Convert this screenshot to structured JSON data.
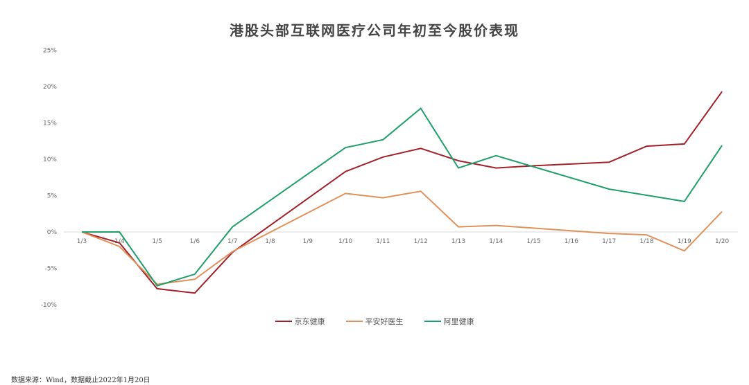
{
  "title": "港股头部互联网医疗公司年初至今股价表现",
  "source_note": "数据来源：Wind，数据截止2022年1月20日",
  "chart_data": {
    "type": "line",
    "title": "港股头部互联网医疗公司年初至今股价表现",
    "xlabel": "",
    "ylabel": "",
    "categories": [
      "1/3",
      "1/4",
      "1/5",
      "1/6",
      "1/7",
      "1/8",
      "1/9",
      "1/10",
      "1/11",
      "1/12",
      "1/13",
      "1/14",
      "1/15",
      "1/16",
      "1/17",
      "1/18",
      "1/19",
      "1/20"
    ],
    "y_ticks": [
      "25%",
      "20%",
      "15%",
      "10%",
      "5%",
      "0%",
      "-5%",
      "-10%"
    ],
    "ylim": [
      -10,
      25
    ],
    "grid": false,
    "legend_position": "bottom",
    "series": [
      {
        "name": "京东健康",
        "color": "#A3202A",
        "values": [
          0,
          -1.5,
          -7.8,
          -8.4,
          -2.8,
          null,
          null,
          8.3,
          10.3,
          11.5,
          9.8,
          8.8,
          9.1,
          null,
          9.6,
          11.8,
          12.1,
          19.3
        ]
      },
      {
        "name": "平安好医生",
        "color": "#E0915A",
        "values": [
          0,
          -2.0,
          -7.2,
          -6.5,
          -2.7,
          null,
          null,
          5.3,
          4.7,
          5.6,
          0.7,
          0.9,
          null,
          null,
          -0.2,
          -0.4,
          -2.6,
          2.8
        ]
      },
      {
        "name": "阿里健康",
        "color": "#1E9E6A",
        "values": [
          0,
          0,
          -7.4,
          -5.8,
          0.7,
          null,
          null,
          11.6,
          12.7,
          17.0,
          8.8,
          10.5,
          null,
          null,
          5.9,
          null,
          4.2,
          11.9
        ]
      }
    ]
  },
  "legend": [
    {
      "label": "京东健康",
      "color": "#A3202A"
    },
    {
      "label": "平安好医生",
      "color": "#E0915A"
    },
    {
      "label": "阿里健康",
      "color": "#1E9E6A"
    }
  ]
}
